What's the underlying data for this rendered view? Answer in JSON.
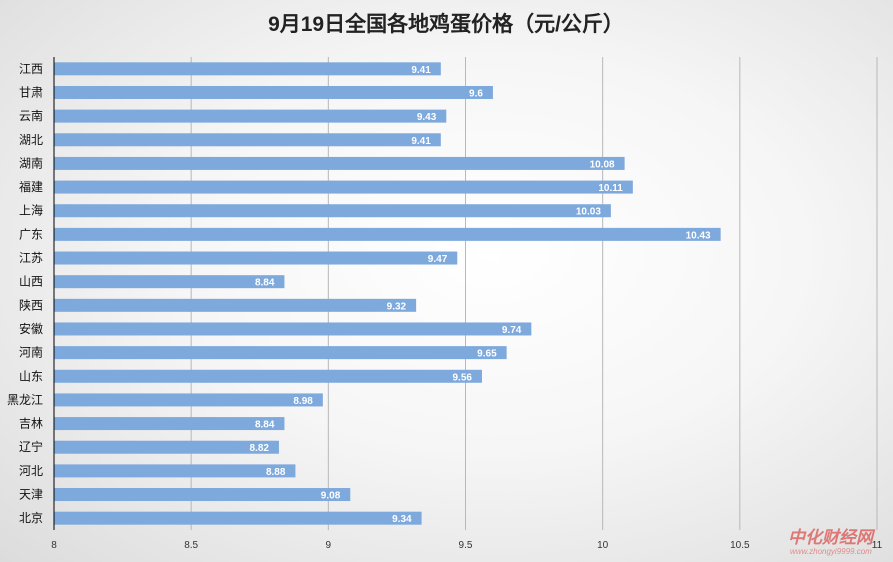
{
  "chart_data": {
    "type": "bar",
    "orientation": "horizontal",
    "title": "9月19日全国各地鸡蛋价格（元/公斤）",
    "xlabel": "",
    "ylabel": "",
    "xlim": [
      8,
      11
    ],
    "x_ticks": [
      "8",
      "8.5",
      "9",
      "9.5",
      "10",
      "10.5",
      "11"
    ],
    "grid": true,
    "legend": "none",
    "bar_color": "#7ea9dc",
    "categories": [
      "江西",
      "甘肃",
      "云南",
      "湖北",
      "湖南",
      "福建",
      "上海",
      "广东",
      "江苏",
      "山西",
      "陕西",
      "安徽",
      "河南",
      "山东",
      "黑龙江",
      "吉林",
      "辽宁",
      "河北",
      "天津",
      "北京"
    ],
    "values": [
      9.41,
      9.6,
      9.43,
      9.41,
      10.08,
      10.11,
      10.03,
      10.43,
      9.47,
      8.84,
      9.32,
      9.74,
      9.65,
      9.56,
      8.98,
      8.84,
      8.82,
      8.88,
      9.08,
      9.34
    ],
    "value_labels": [
      "9.41",
      "9.6",
      "9.43",
      "9.41",
      "10.08",
      "10.11",
      "10.03",
      "10.43",
      "9.47",
      "8.84",
      "9.32",
      "9.74",
      "9.65",
      "9.56",
      "8.98",
      "8.84",
      "8.82",
      "8.88",
      "9.08",
      "9.34"
    ]
  },
  "watermark": {
    "text": "中化财经网",
    "url": "www.zhongyi9999.com",
    "color": "#d9534f"
  }
}
